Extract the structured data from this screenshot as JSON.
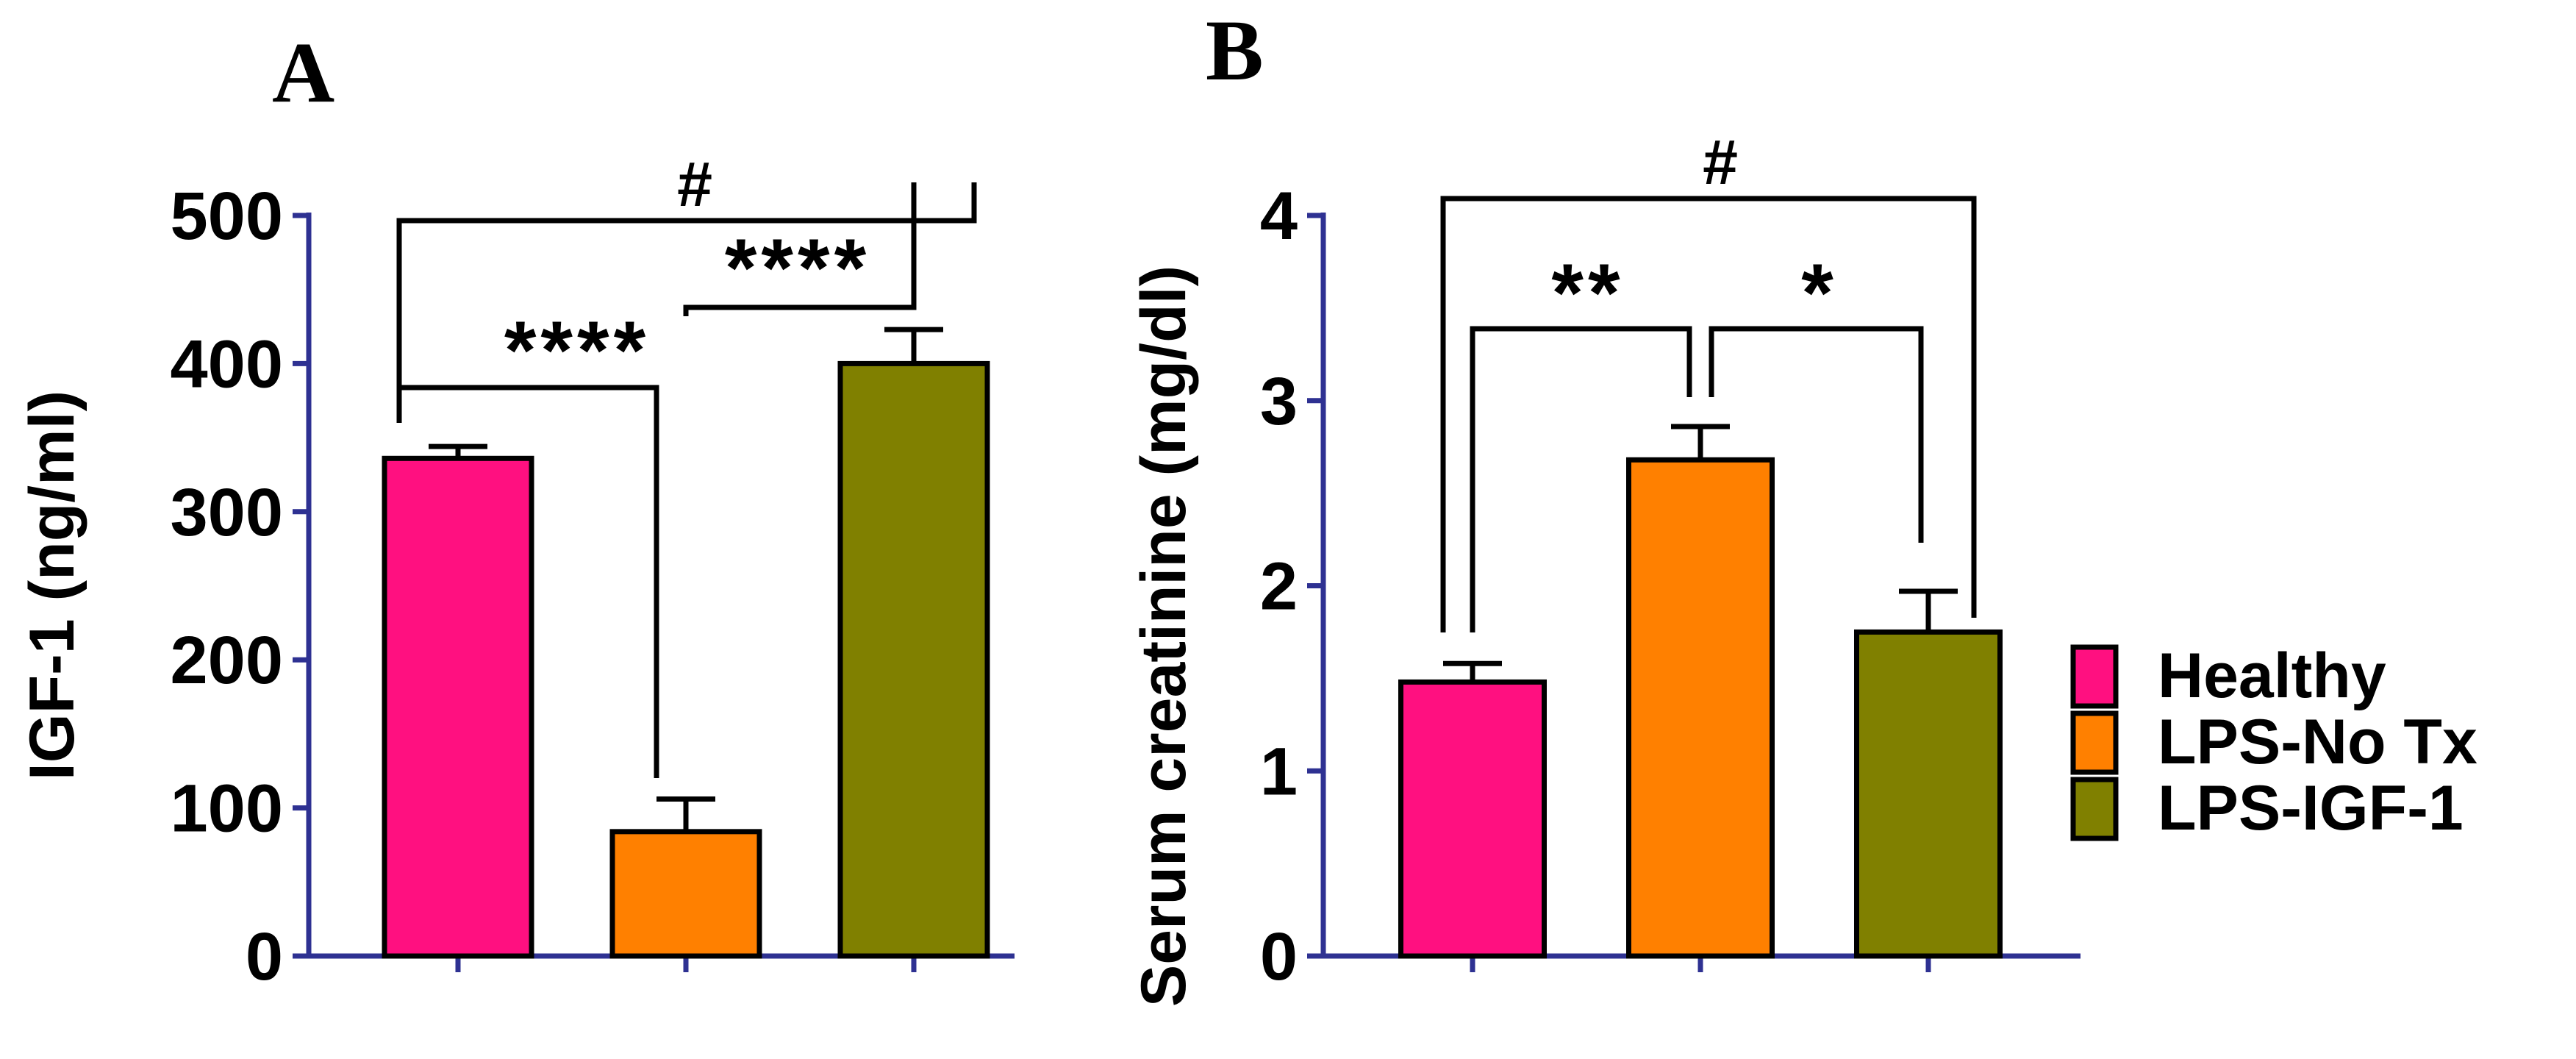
{
  "chart_data": [
    {
      "type": "bar",
      "panel": "A",
      "title": "",
      "xlabel": "",
      "ylabel": "IGF-1 (ng/ml)",
      "ylim": [
        0,
        500
      ],
      "yticks": [
        0,
        100,
        200,
        300,
        400,
        500
      ],
      "categories": [
        "Healthy",
        "LPS-No Tx",
        "LPS-IGF-1"
      ],
      "values": [
        336,
        84,
        400
      ],
      "errors": [
        8,
        22,
        23
      ],
      "significance": [
        {
          "from": 0,
          "to": 1,
          "label": "****"
        },
        {
          "from": 1,
          "to": 2,
          "label": "****"
        },
        {
          "from": 0,
          "to": 2,
          "label": "#"
        }
      ]
    },
    {
      "type": "bar",
      "panel": "B",
      "title": "",
      "xlabel": "",
      "ylabel": "Serum creatinine (mg/dl)",
      "ylim": [
        0,
        4
      ],
      "yticks": [
        0,
        1,
        2,
        3,
        4
      ],
      "categories": [
        "Healthy",
        "LPS-No Tx",
        "LPS-IGF-1"
      ],
      "values": [
        1.48,
        2.68,
        1.75
      ],
      "errors": [
        0.1,
        0.18,
        0.22
      ],
      "significance": [
        {
          "from": 0,
          "to": 1,
          "label": "**"
        },
        {
          "from": 1,
          "to": 2,
          "label": "*"
        },
        {
          "from": 0,
          "to": 2,
          "label": "#"
        }
      ]
    }
  ],
  "legend": {
    "position": "right",
    "items": [
      {
        "label": "Healthy",
        "color": "#FF1080"
      },
      {
        "label": "LPS-No Tx",
        "color": "#FF8000"
      },
      {
        "label": "LPS-IGF-1",
        "color": "#808000"
      }
    ]
  },
  "axis_color": "#2E3192"
}
